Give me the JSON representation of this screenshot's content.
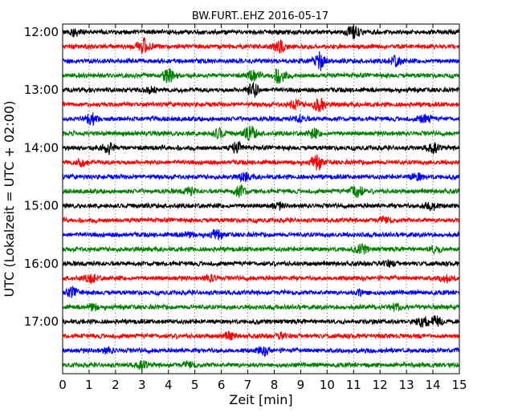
{
  "chart_data": {
    "type": "line",
    "title": "BW.FURT..EHZ 2016-05-17",
    "xlabel": "Zeit  [min]",
    "ylabel": "UTC (Lokalzeit = UTC + 02:00)",
    "xlim": [
      0,
      15
    ],
    "x_ticks": [
      "0",
      "1",
      "2",
      "3",
      "4",
      "5",
      "6",
      "7",
      "8",
      "9",
      "10",
      "11",
      "12",
      "13",
      "14",
      "15"
    ],
    "y_ticks": [
      "12:00",
      "13:00",
      "14:00",
      "15:00",
      "16:00",
      "17:00"
    ],
    "grid": "vertical dotted at each minute",
    "line_colors": [
      "#000000",
      "#ff0000",
      "#0000ff",
      "#008000"
    ],
    "traces": [
      {
        "start": "12:00",
        "events": [
          {
            "t": 11.0,
            "amp": 1.0
          },
          {
            "t": 0.5,
            "amp": 0.6
          }
        ]
      },
      {
        "start": "12:15",
        "events": [
          {
            "t": 3.05,
            "amp": 1.4
          },
          {
            "t": 8.2,
            "amp": 1.0
          }
        ]
      },
      {
        "start": "12:30",
        "events": [
          {
            "t": 9.7,
            "amp": 1.6
          },
          {
            "t": 12.6,
            "amp": 0.8
          }
        ]
      },
      {
        "start": "12:45",
        "events": [
          {
            "t": 4.0,
            "amp": 1.3
          },
          {
            "t": 8.2,
            "amp": 1.3
          },
          {
            "t": 7.2,
            "amp": 0.8
          }
        ]
      },
      {
        "start": "13:00",
        "events": [
          {
            "t": 7.2,
            "amp": 1.3
          },
          {
            "t": 3.3,
            "amp": 0.5
          }
        ]
      },
      {
        "start": "13:15",
        "events": [
          {
            "t": 9.7,
            "amp": 1.2
          },
          {
            "t": 8.8,
            "amp": 0.7
          }
        ]
      },
      {
        "start": "13:30",
        "events": [
          {
            "t": 1.1,
            "amp": 0.9
          },
          {
            "t": 13.7,
            "amp": 0.9
          },
          {
            "t": 9.0,
            "amp": 0.6
          }
        ]
      },
      {
        "start": "13:45",
        "events": [
          {
            "t": 7.1,
            "amp": 1.2
          },
          {
            "t": 5.9,
            "amp": 0.8
          },
          {
            "t": 9.5,
            "amp": 0.7
          }
        ]
      },
      {
        "start": "14:00",
        "events": [
          {
            "t": 1.7,
            "amp": 1.1
          },
          {
            "t": 6.6,
            "amp": 0.9
          },
          {
            "t": 14.0,
            "amp": 0.8
          }
        ]
      },
      {
        "start": "14:15",
        "events": [
          {
            "t": 9.6,
            "amp": 1.2
          },
          {
            "t": 0.7,
            "amp": 0.5
          }
        ]
      },
      {
        "start": "14:30",
        "events": [
          {
            "t": 6.9,
            "amp": 0.7
          },
          {
            "t": 13.4,
            "amp": 0.6
          }
        ]
      },
      {
        "start": "14:45",
        "events": [
          {
            "t": 11.1,
            "amp": 1.2
          },
          {
            "t": 6.7,
            "amp": 0.9
          },
          {
            "t": 4.8,
            "amp": 0.6
          }
        ]
      },
      {
        "start": "15:00",
        "events": [
          {
            "t": 13.9,
            "amp": 0.9
          },
          {
            "t": 8.1,
            "amp": 0.5
          }
        ]
      },
      {
        "start": "15:15",
        "events": [
          {
            "t": 12.2,
            "amp": 0.5
          }
        ]
      },
      {
        "start": "15:30",
        "events": [
          {
            "t": 5.8,
            "amp": 0.8
          },
          {
            "t": 4.7,
            "amp": 0.5
          }
        ]
      },
      {
        "start": "15:45",
        "events": [
          {
            "t": 11.3,
            "amp": 0.8
          },
          {
            "t": 14.1,
            "amp": 0.5
          }
        ]
      },
      {
        "start": "16:00",
        "events": [
          {
            "t": 12.3,
            "amp": 0.5
          }
        ]
      },
      {
        "start": "16:15",
        "events": [
          {
            "t": 1.1,
            "amp": 0.7
          },
          {
            "t": 14.5,
            "amp": 0.6
          },
          {
            "t": 5.6,
            "amp": 0.5
          }
        ]
      },
      {
        "start": "16:30",
        "events": [
          {
            "t": 0.4,
            "amp": 0.8
          },
          {
            "t": 11.3,
            "amp": 0.5
          }
        ]
      },
      {
        "start": "16:45",
        "events": [
          {
            "t": 1.1,
            "amp": 0.6
          },
          {
            "t": 12.6,
            "amp": 0.5
          }
        ]
      },
      {
        "start": "17:00",
        "events": [
          {
            "t": 13.6,
            "amp": 0.9
          },
          {
            "t": 14.1,
            "amp": 0.9
          }
        ]
      },
      {
        "start": "17:15",
        "events": [
          {
            "t": 6.3,
            "amp": 0.6
          },
          {
            "t": 8.3,
            "amp": 0.4
          }
        ]
      },
      {
        "start": "17:30",
        "events": [
          {
            "t": 7.6,
            "amp": 0.7
          },
          {
            "t": 1.7,
            "amp": 0.4
          }
        ]
      },
      {
        "start": "17:45",
        "events": [
          {
            "t": 3.0,
            "amp": 0.6
          },
          {
            "t": 4.8,
            "amp": 0.5
          }
        ]
      }
    ]
  }
}
